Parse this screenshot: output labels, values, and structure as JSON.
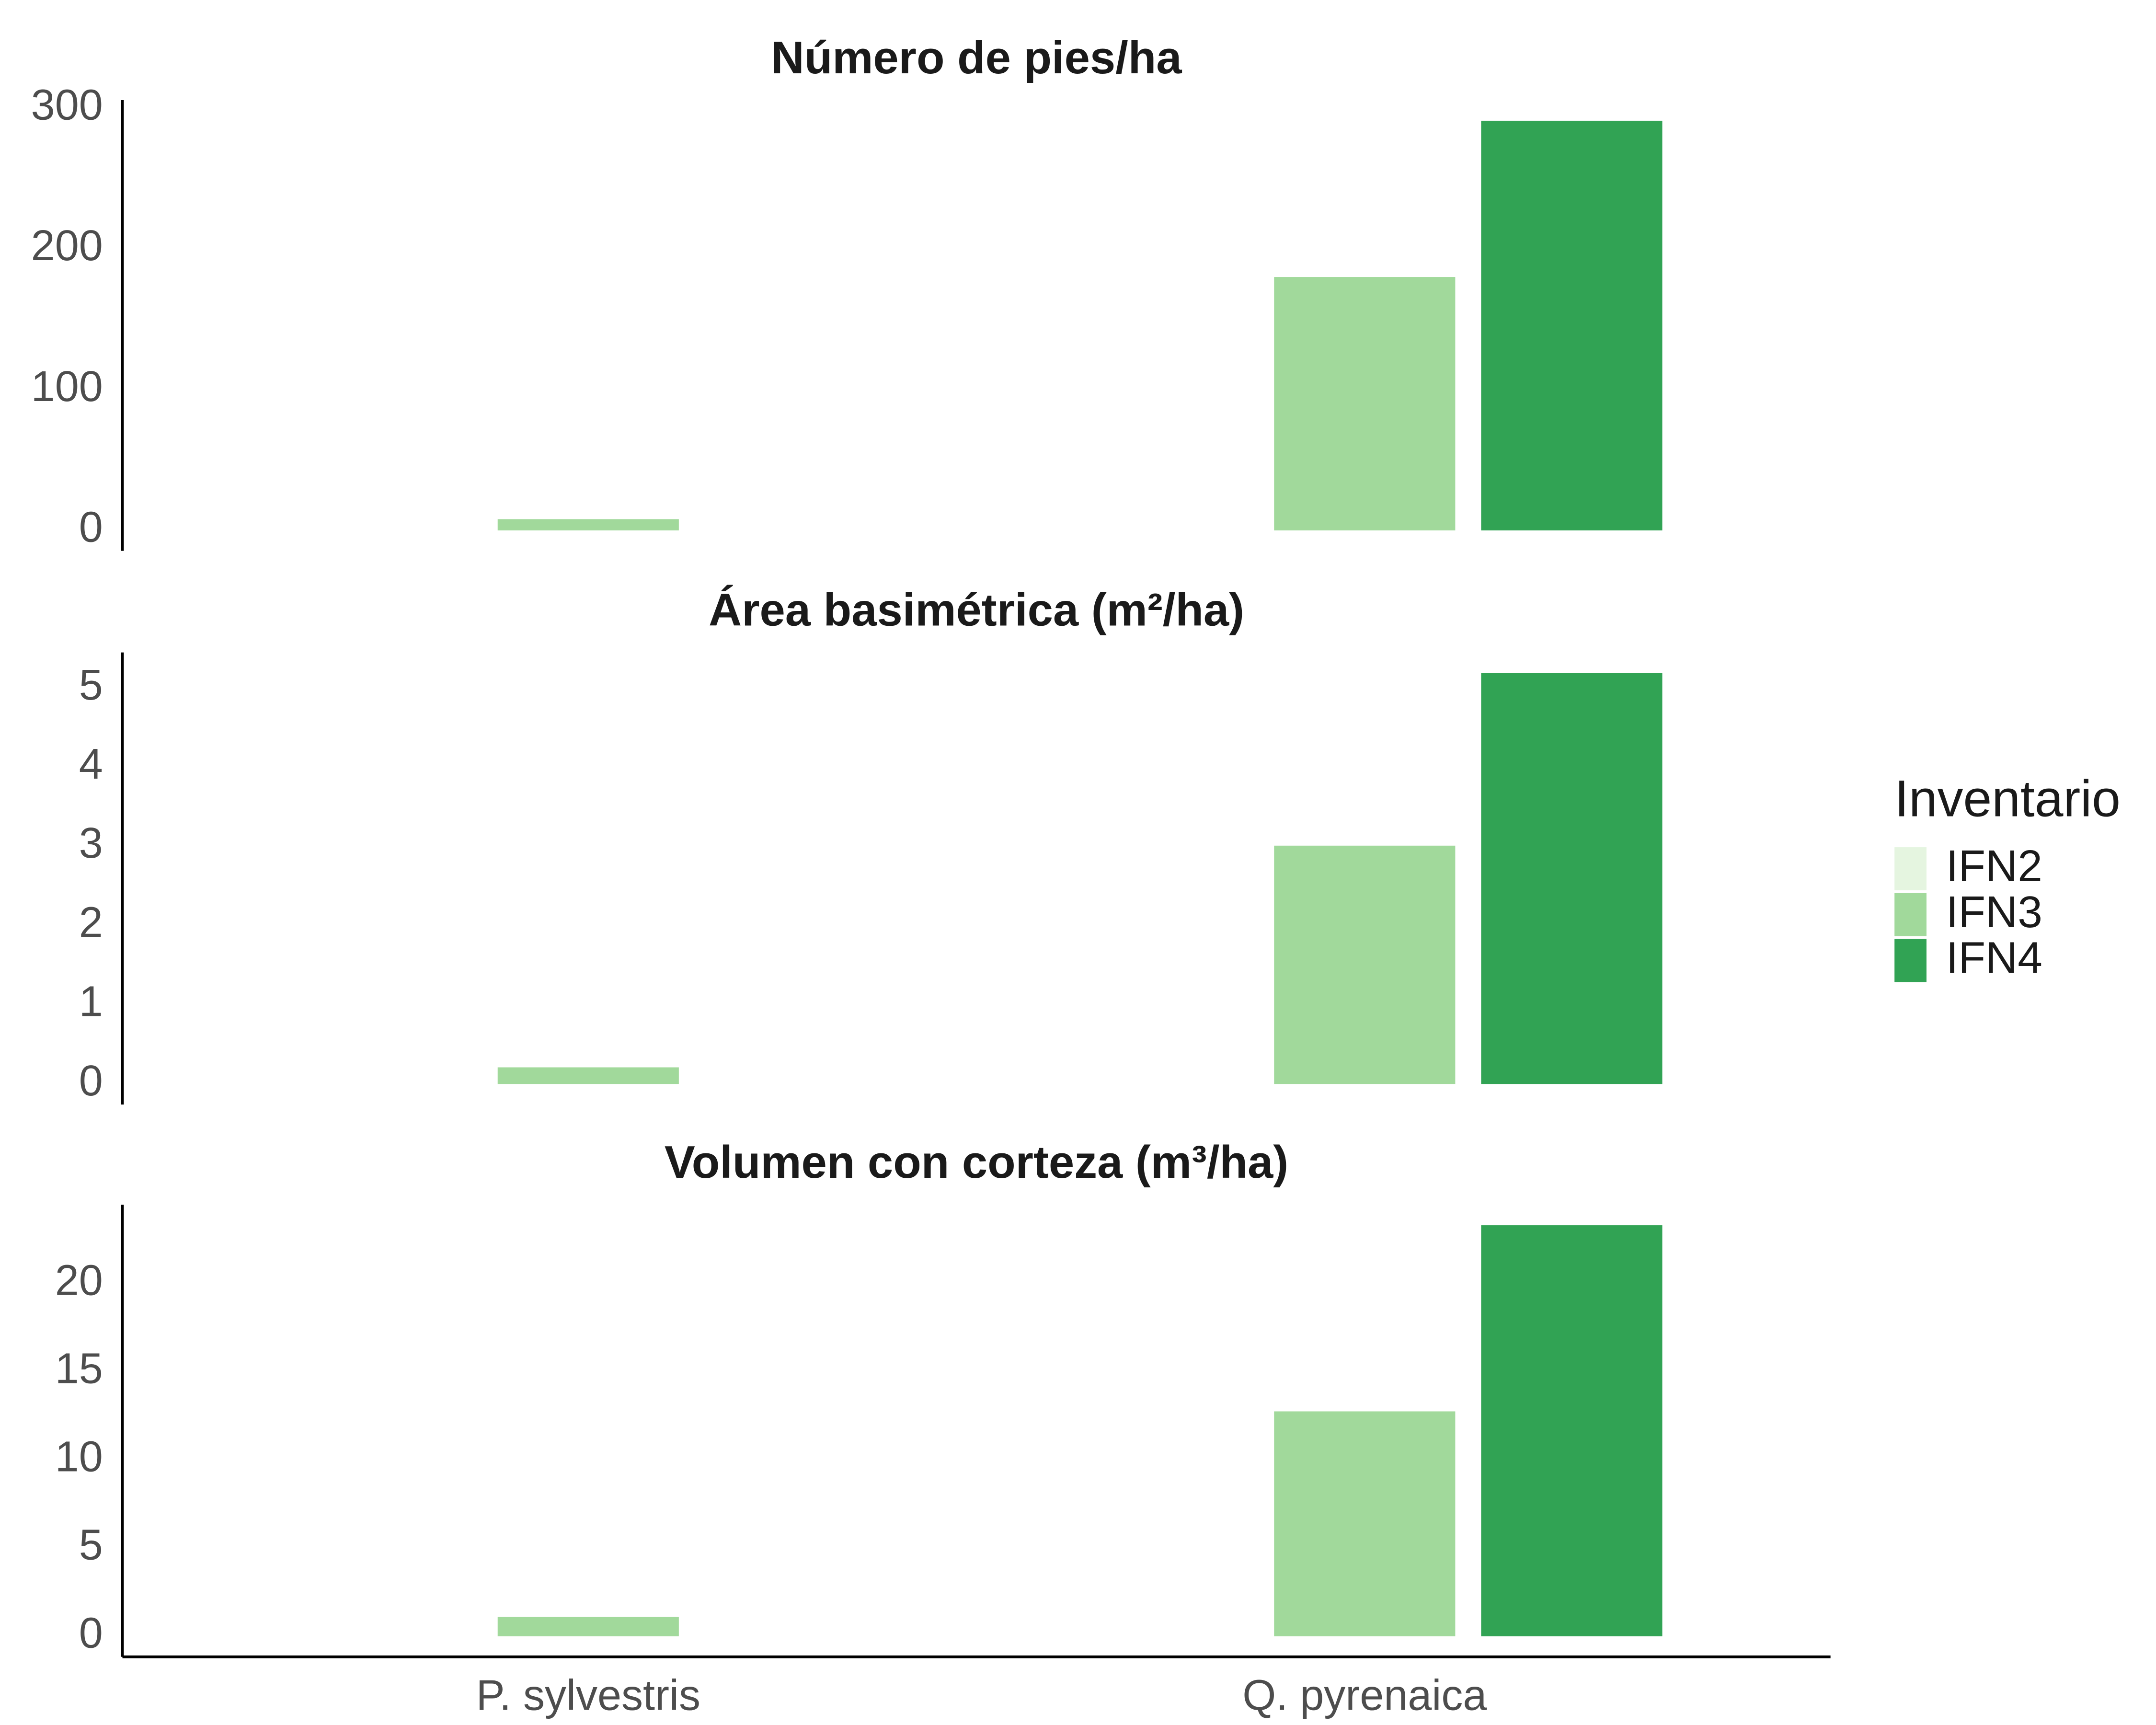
{
  "chart_data": [
    {
      "type": "bar",
      "title": "Número de pies/ha",
      "categories": [
        "P. sylvestris",
        "Q. pyrenaica"
      ],
      "series": [
        {
          "name": "IFN2",
          "color": "#e5f5e0",
          "values": [
            null,
            0
          ]
        },
        {
          "name": "IFN3",
          "color": "#a1d99b",
          "values": [
            8,
            180
          ]
        },
        {
          "name": "IFN4",
          "color": "#31a354",
          "values": [
            null,
            291
          ]
        }
      ],
      "ylim": [
        -14.55,
        305.6
      ],
      "yticks": [
        0,
        100,
        200,
        300
      ],
      "legend": "right",
      "legend_title": "Inventario"
    },
    {
      "type": "bar",
      "title": "Área basimétrica (m²/ha)",
      "categories": [
        "P. sylvestris",
        "Q. pyrenaica"
      ],
      "series": [
        {
          "name": "IFN2",
          "color": "#e5f5e0",
          "values": [
            null,
            0
          ]
        },
        {
          "name": "IFN3",
          "color": "#a1d99b",
          "values": [
            0.21,
            3.01
          ]
        },
        {
          "name": "IFN4",
          "color": "#31a354",
          "values": [
            null,
            5.19
          ]
        }
      ],
      "ylim": [
        -0.26,
        5.45
      ],
      "yticks": [
        0,
        1,
        2,
        3,
        4,
        5
      ]
    },
    {
      "type": "bar",
      "title": "Volumen con corteza (m³/ha)",
      "categories": [
        "P. sylvestris",
        "Q. pyrenaica"
      ],
      "series": [
        {
          "name": "IFN2",
          "color": "#e5f5e0",
          "values": [
            null,
            0
          ]
        },
        {
          "name": "IFN3",
          "color": "#a1d99b",
          "values": [
            1.1,
            12.75
          ]
        },
        {
          "name": "IFN4",
          "color": "#31a354",
          "values": [
            null,
            23.3
          ]
        }
      ],
      "ylim": [
        -1.165,
        24.465
      ],
      "yticks": [
        0,
        5,
        10,
        15,
        20
      ]
    }
  ]
}
